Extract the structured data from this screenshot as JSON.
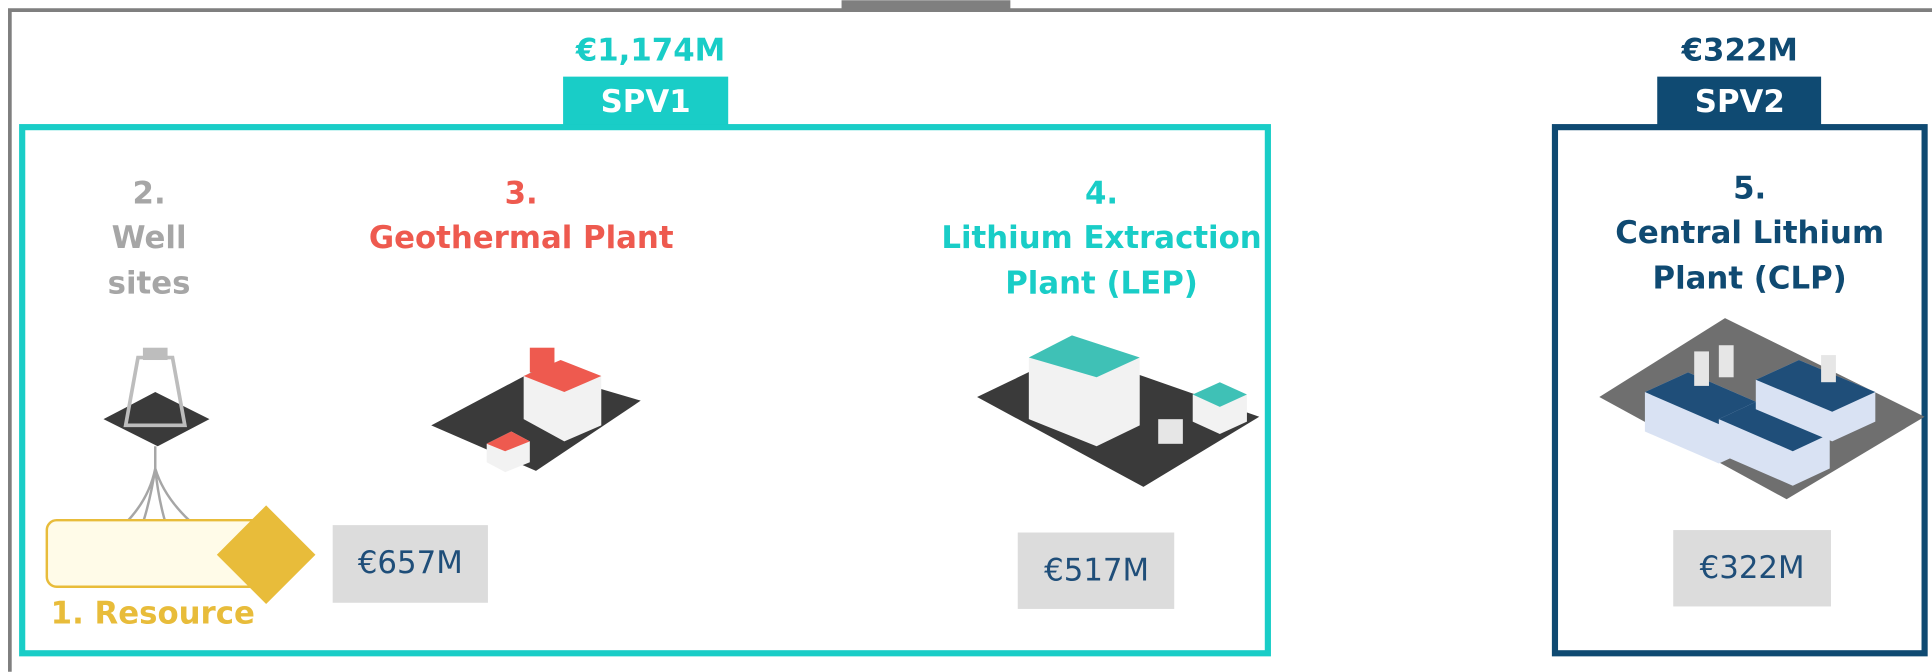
{
  "spv1": {
    "total": "€1,174M",
    "name": "SPV1",
    "stages": [
      {
        "number": "2.",
        "title": [
          "Well",
          "sites"
        ]
      },
      {
        "number": "3.",
        "title": [
          "Geothermal Plant"
        ],
        "cost": "€657M"
      },
      {
        "number": "4.",
        "title": [
          "Lithium Extraction",
          "Plant (LEP)"
        ],
        "cost": "€517M"
      }
    ],
    "resource": "1. Resource"
  },
  "spv2": {
    "total": "€322M",
    "name": "SPV2",
    "stages": [
      {
        "number": "5.",
        "title": [
          "Central Lithium",
          "Plant (CLP)"
        ],
        "cost": "€322M"
      }
    ]
  }
}
